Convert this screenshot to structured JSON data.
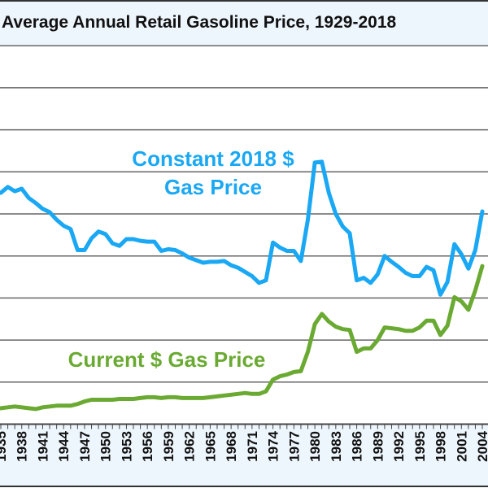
{
  "chart_data": {
    "type": "line",
    "title": "Average Annual Retail Gasoline Price, 1929-2018",
    "xlabel": "",
    "ylabel": "",
    "xlim": [
      1934.9,
      2004.8
    ],
    "ylim": [
      0,
      4.5
    ],
    "grid": true,
    "y_gridlines": [
      0.5,
      1.0,
      1.5,
      2.0,
      2.5,
      3.0,
      3.5,
      4.0,
      4.5
    ],
    "x_tick_labels": [
      "1935",
      "1938",
      "1941",
      "1944",
      "1947",
      "1950",
      "1953",
      "1956",
      "1959",
      "1962",
      "1965",
      "1968",
      "1971",
      "1974",
      "1977",
      "1980",
      "1983",
      "1986",
      "1989",
      "1992",
      "1995",
      "1998",
      "2001",
      "2004"
    ],
    "x": [
      1935,
      1936,
      1937,
      1938,
      1939,
      1940,
      1941,
      1942,
      1943,
      1944,
      1945,
      1946,
      1947,
      1948,
      1949,
      1950,
      1951,
      1952,
      1953,
      1954,
      1955,
      1956,
      1957,
      1958,
      1959,
      1960,
      1961,
      1962,
      1963,
      1964,
      1965,
      1966,
      1967,
      1968,
      1969,
      1970,
      1971,
      1972,
      1973,
      1974,
      1975,
      1976,
      1977,
      1978,
      1979,
      1980,
      1981,
      1982,
      1983,
      1984,
      1985,
      1986,
      1987,
      1988,
      1989,
      1990,
      1991,
      1992,
      1993,
      1994,
      1995,
      1996,
      1997,
      1998,
      1999,
      2000,
      2001,
      2002,
      2003,
      2004
    ],
    "series": [
      {
        "name": "Constant 2018 $ Gas Price",
        "label_lines": [
          "Constant 2018 $",
          "Gas Price"
        ],
        "color": "#1aa8f4",
        "values": [
          2.75,
          2.82,
          2.77,
          2.8,
          2.69,
          2.63,
          2.56,
          2.52,
          2.43,
          2.36,
          2.32,
          2.07,
          2.07,
          2.21,
          2.29,
          2.26,
          2.15,
          2.12,
          2.2,
          2.2,
          2.18,
          2.17,
          2.17,
          2.06,
          2.08,
          2.07,
          2.03,
          1.98,
          1.95,
          1.92,
          1.93,
          1.93,
          1.94,
          1.89,
          1.86,
          1.81,
          1.76,
          1.68,
          1.71,
          2.16,
          2.1,
          2.06,
          2.06,
          1.94,
          2.43,
          3.11,
          3.12,
          2.75,
          2.5,
          2.35,
          2.27,
          1.71,
          1.74,
          1.68,
          1.78,
          2.0,
          1.93,
          1.87,
          1.8,
          1.76,
          1.76,
          1.87,
          1.83,
          1.54,
          1.69,
          2.14,
          2.02,
          1.85,
          2.07,
          2.53
        ]
      },
      {
        "name": "Current $ Gas Price",
        "label_lines": [
          "Current $ Gas Price"
        ],
        "color": "#6aaa32",
        "values": [
          0.19,
          0.2,
          0.21,
          0.2,
          0.19,
          0.18,
          0.2,
          0.21,
          0.22,
          0.22,
          0.22,
          0.24,
          0.27,
          0.29,
          0.29,
          0.29,
          0.29,
          0.3,
          0.3,
          0.3,
          0.31,
          0.32,
          0.32,
          0.31,
          0.32,
          0.32,
          0.31,
          0.31,
          0.31,
          0.31,
          0.32,
          0.33,
          0.34,
          0.35,
          0.36,
          0.37,
          0.36,
          0.36,
          0.39,
          0.53,
          0.57,
          0.59,
          0.62,
          0.63,
          0.86,
          1.19,
          1.31,
          1.22,
          1.16,
          1.13,
          1.12,
          0.86,
          0.9,
          0.9,
          1.0,
          1.15,
          1.14,
          1.13,
          1.11,
          1.11,
          1.15,
          1.23,
          1.23,
          1.06,
          1.17,
          1.51,
          1.46,
          1.36,
          1.59,
          1.88
        ]
      }
    ]
  },
  "colors": {
    "band_background": "#eef6fd",
    "gridline": "#555555"
  }
}
